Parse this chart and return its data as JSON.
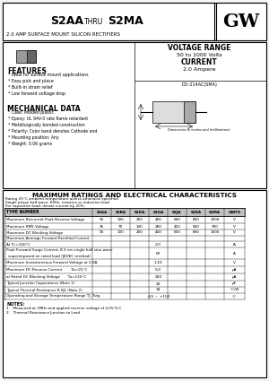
{
  "title_part1": "S2AA",
  "title_thru": "THRU",
  "title_part2": "S2MA",
  "subtitle": "2.0 AMP SURFACE MOUNT SILICON RECTIFIERS",
  "logo": "GW",
  "voltage_range_title": "VOLTAGE RANGE",
  "voltage_range_val": "50 to 1000 Volts",
  "current_title": "CURRENT",
  "current_val": "2.0 Ampere",
  "features_title": "FEATURES",
  "features": [
    "* Ideal for surface mount applications",
    "* Easy pick and place",
    "* Built-in strain relief",
    "* Low forward voltage drop"
  ],
  "mech_title": "MECHANICAL DATA",
  "mech": [
    "* Case: Molded plastic",
    "* Epoxy: UL 94V-0 rate flame retardant",
    "* Metallurgically bonded construction",
    "* Polarity: Color band denotes Cathode end",
    "* Mounting position: Any",
    "* Weight: 0.06 grams"
  ],
  "diag_label": "DO-214AC(SMA)",
  "diag_note": "Dimensions in inches and (millimeters)",
  "table_title": "MAXIMUM RATINGS AND ELECTRICAL CHARACTERISTICS",
  "table_note1": "Rating 25°C ambient temperature unless otherwise specified",
  "table_note2": "Single phase half wave, 60Hz, resistive or inductive load.",
  "table_note3": "For capacitive load, derate current by 20%.",
  "col_headers": [
    "TYPE NUMBER",
    "S2AA",
    "S2BA",
    "S2DA",
    "S2GA",
    "S2JA",
    "S2KA",
    "S2MA",
    "UNITS"
  ],
  "rows": [
    {
      "param": "Maximum Recurrent Peak Reverse Voltage",
      "vals": [
        "50",
        "100",
        "200",
        "400",
        "600",
        "800",
        "1000"
      ],
      "unit": "V",
      "type": "per_col"
    },
    {
      "param": "Maximum RMS Voltage",
      "vals": [
        "35",
        "70",
        "140",
        "280",
        "420",
        "560",
        "700"
      ],
      "unit": "V",
      "type": "per_col"
    },
    {
      "param": "Maximum DC Blocking Voltage",
      "vals": [
        "50",
        "100",
        "200",
        "400",
        "600",
        "800",
        "1000"
      ],
      "unit": "V",
      "type": "per_col"
    },
    {
      "param": "Maximum Average Forward Rectified Current",
      "vals": [],
      "unit": "",
      "type": "label_only"
    },
    {
      "param": "At TL=100°C",
      "vals": [
        "2.0"
      ],
      "unit": "A",
      "type": "center_val"
    },
    {
      "param": "Peak Forward Surge Current, 8.3 ms single half sine-wave\nsuperimposed on rated load (JEDEC method)",
      "vals": [
        "60"
      ],
      "unit": "A",
      "type": "center_val"
    },
    {
      "param": "Maximum Instantaneous Forward Voltage at 2.0A",
      "vals": [
        "1.10"
      ],
      "unit": "V",
      "type": "center_val"
    },
    {
      "param": "Maximum DC Reverse Current        Ta=25°C",
      "vals": [
        "5.0"
      ],
      "unit": "μA",
      "type": "center_val"
    },
    {
      "param": "at Rated DC Blocking Voltage       Ta=125°C",
      "vals": [
        "200"
      ],
      "unit": "μA",
      "type": "center_val"
    },
    {
      "param": "Typical Junction Capacitance (Note 1)",
      "vals": [
        "20"
      ],
      "unit": "pF",
      "type": "center_val"
    },
    {
      "param": "Typical Thermal Resistance R θJL (Note 2)",
      "vals": [
        "14"
      ],
      "unit": "°C/W",
      "type": "center_val"
    },
    {
      "param": "Operating and Storage Temperature Range TJ, Tstg",
      "vals": [
        "-65 ~ +150"
      ],
      "unit": "°C",
      "type": "center_val"
    }
  ],
  "notes_title": "NOTES:",
  "note1": "1.   Measured at 1MHz and applied reverse voltage of 4.0V D.C.",
  "note2": "2.   Thermal Resistance Junction to Lead",
  "bg_color": "#f5f5f5",
  "white": "#ffffff",
  "black": "#000000",
  "gray_header": "#c0c0c0",
  "gray_chip": "#999999",
  "gray_stripe": "#666666"
}
